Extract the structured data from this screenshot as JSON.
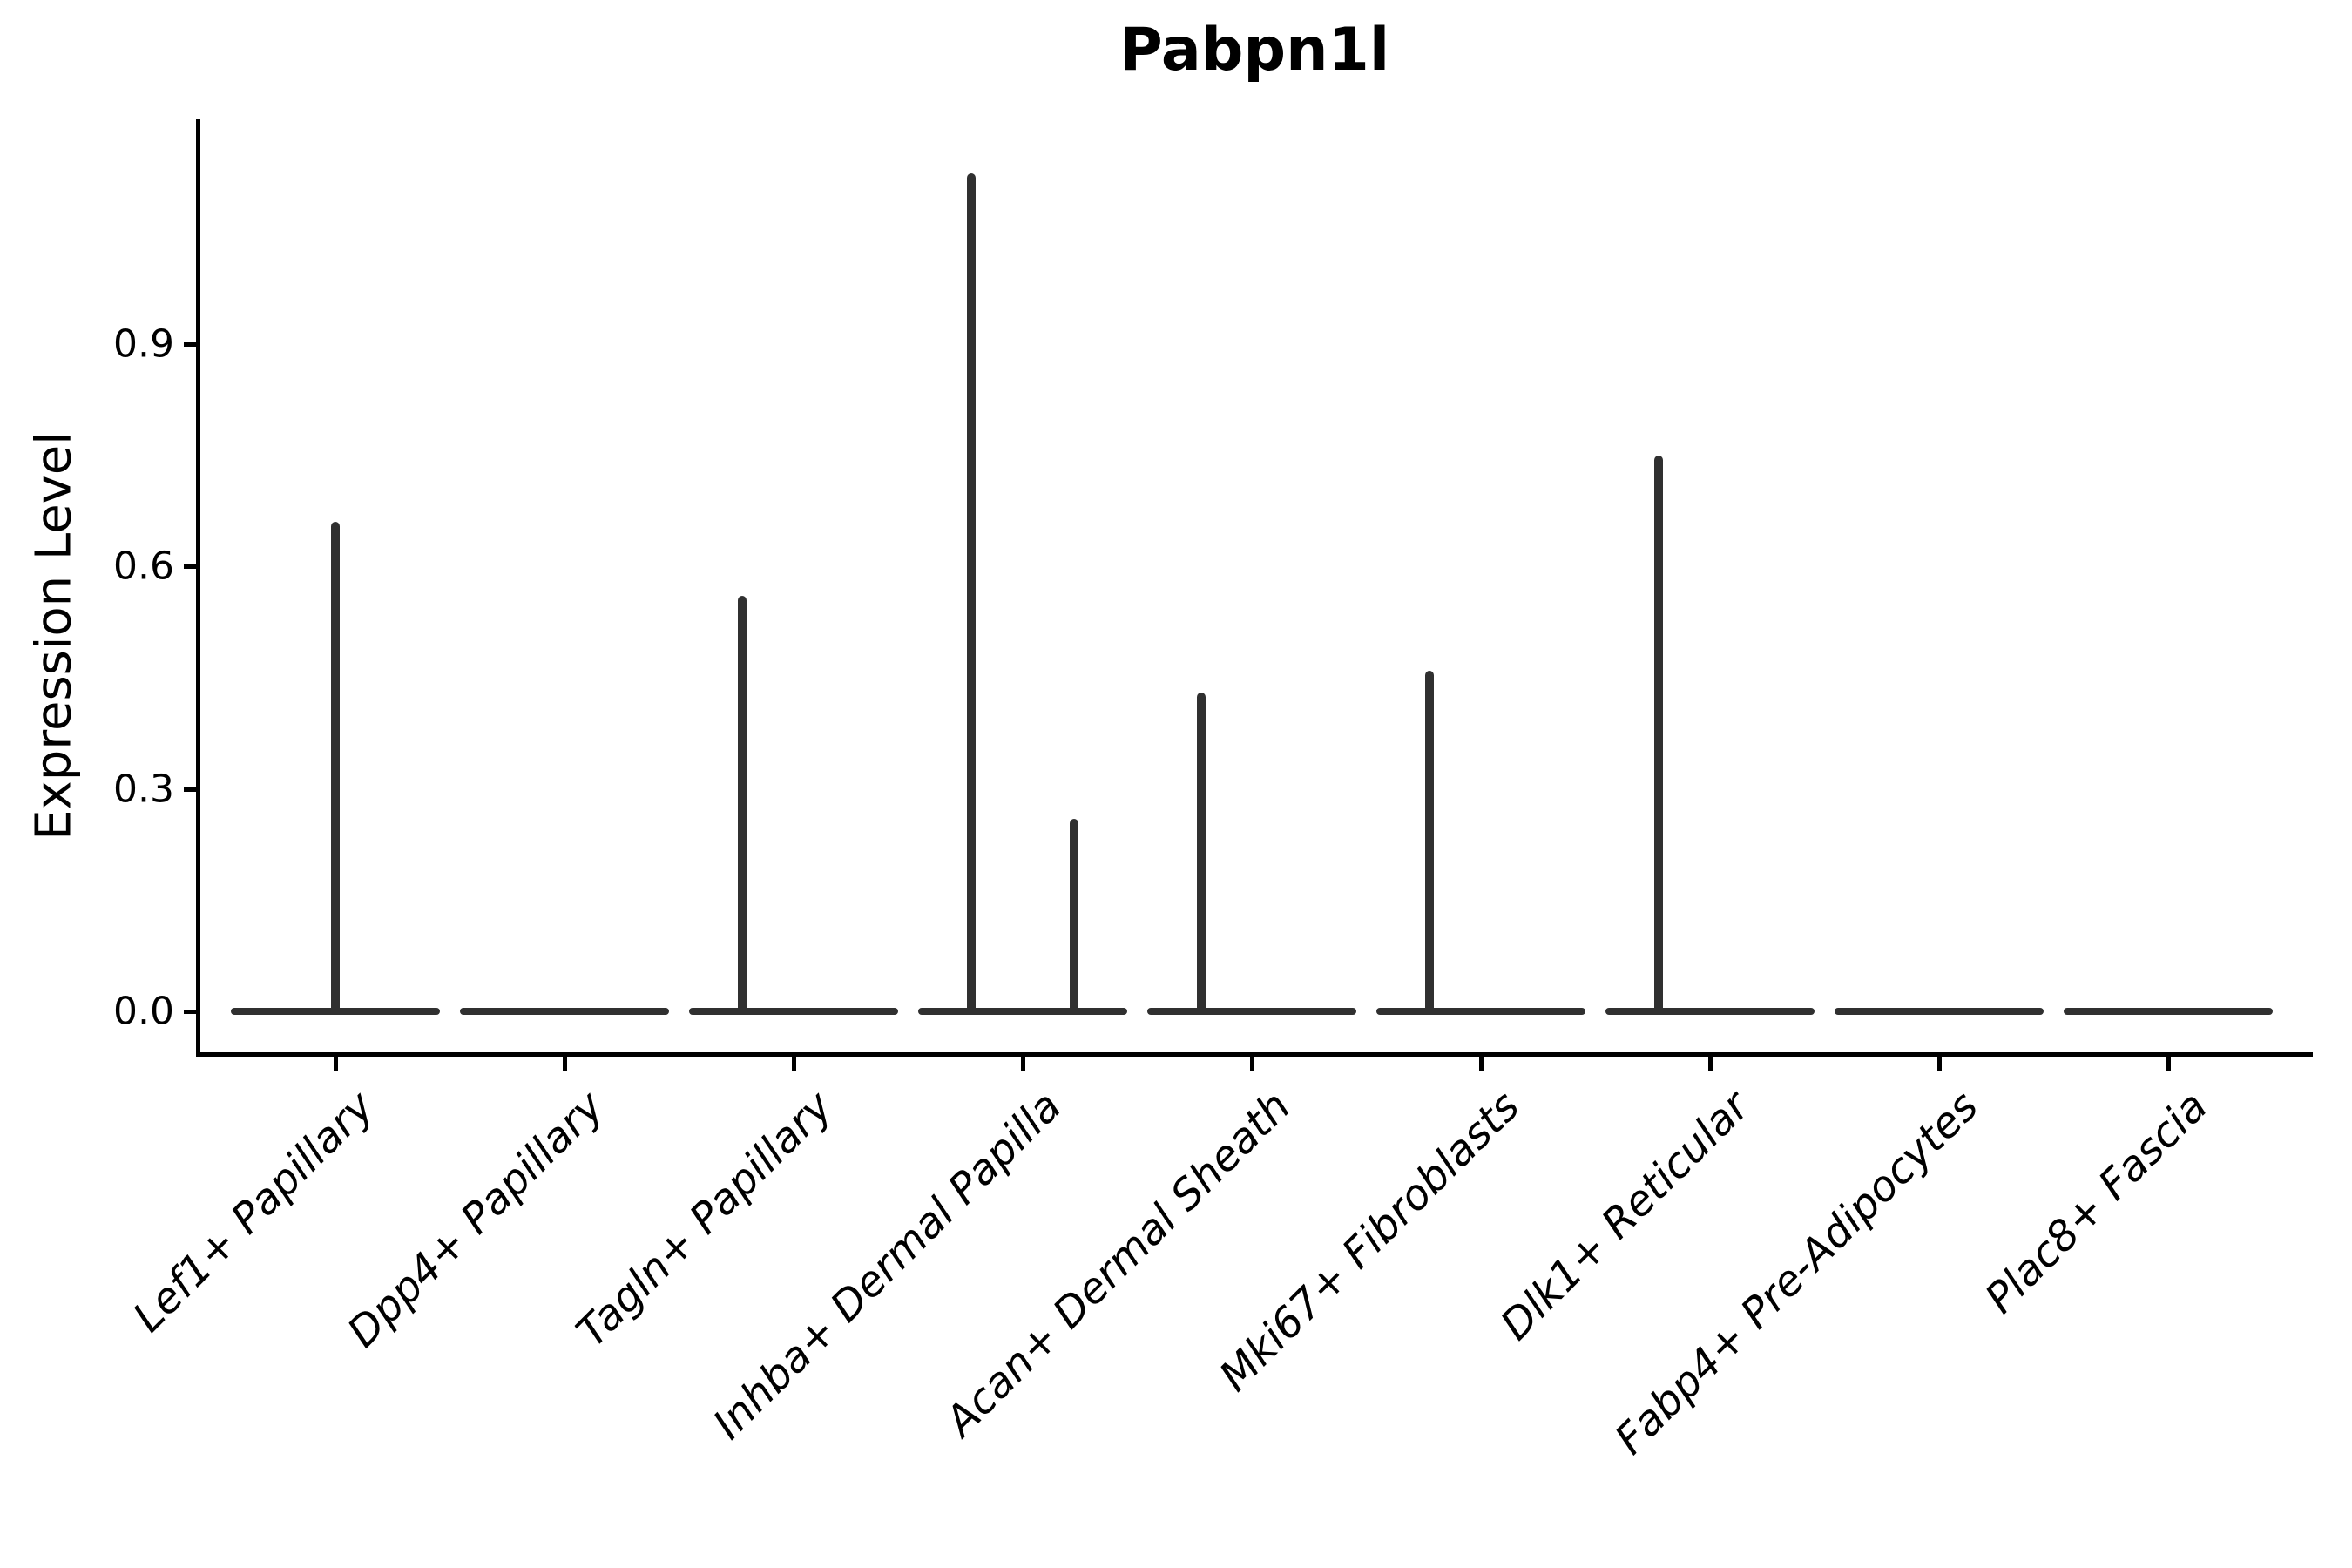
{
  "figure": {
    "title": "Pabpn1l",
    "y_axis_label": "Expression Level"
  },
  "colors": {
    "violin_line": "#303030",
    "axis": "#000000",
    "background": "#ffffff"
  },
  "chart_data": {
    "type": "violin",
    "title": "Pabpn1l",
    "xlabel": "",
    "ylabel": "Expression Level",
    "ylim": [
      0,
      1.2
    ],
    "grid": false,
    "legend": null,
    "y_ticks": [
      0.0,
      0.3,
      0.6,
      0.9
    ],
    "y_tick_labels": [
      "0.0",
      "0.3",
      "0.6",
      "0.9"
    ],
    "categories": [
      "Lef1+ Papillary",
      "Dpp4+ Papillary",
      "Tagln+ Papillary",
      "Inhba+ Dermal Papilla",
      "Acan+ Dermal Sheath",
      "Mki67+ Fibroblasts",
      "Dlk1+ Reticular",
      "Fabp4+ Pre-Adipocytes",
      "Plac8+ Fascia"
    ],
    "series": [
      {
        "category": "Lef1+ Papillary",
        "baseline_value": 0.0,
        "spikes": [
          {
            "value": 0.66,
            "offset_frac": 0.0
          }
        ]
      },
      {
        "category": "Dpp4+ Papillary",
        "baseline_value": 0.0,
        "spikes": []
      },
      {
        "category": "Tagln+ Papillary",
        "baseline_value": 0.0,
        "spikes": [
          {
            "value": 0.56,
            "offset_frac": -0.49
          }
        ]
      },
      {
        "category": "Inhba+ Dermal Papilla",
        "baseline_value": 0.0,
        "spikes": [
          {
            "value": 1.13,
            "offset_frac": -0.49
          },
          {
            "value": 0.26,
            "offset_frac": 0.49
          }
        ]
      },
      {
        "category": "Acan+ Dermal Sheath",
        "baseline_value": 0.0,
        "spikes": [
          {
            "value": 0.43,
            "offset_frac": -0.48
          }
        ]
      },
      {
        "category": "Mki67+ Fibroblasts",
        "baseline_value": 0.0,
        "spikes": [
          {
            "value": 0.46,
            "offset_frac": -0.49
          }
        ]
      },
      {
        "category": "Dlk1+ Reticular",
        "baseline_value": 0.0,
        "spikes": [
          {
            "value": 0.75,
            "offset_frac": -0.49
          }
        ]
      },
      {
        "category": "Fabp4+ Pre-Adipocytes",
        "baseline_value": 0.0,
        "spikes": []
      },
      {
        "category": "Plac8+ Fascia",
        "baseline_value": 0.0,
        "spikes": []
      }
    ]
  }
}
